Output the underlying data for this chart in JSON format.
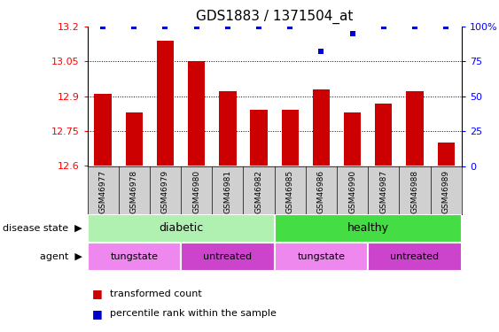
{
  "title": "GDS1883 / 1371504_at",
  "samples": [
    "GSM46977",
    "GSM46978",
    "GSM46979",
    "GSM46980",
    "GSM46981",
    "GSM46982",
    "GSM46985",
    "GSM46986",
    "GSM46990",
    "GSM46987",
    "GSM46988",
    "GSM46989"
  ],
  "bar_values": [
    12.91,
    12.83,
    13.14,
    13.05,
    12.92,
    12.84,
    12.84,
    12.93,
    12.83,
    12.87,
    12.92,
    12.7
  ],
  "percentile_values": [
    100,
    100,
    100,
    100,
    100,
    100,
    100,
    82,
    95,
    100,
    100,
    100
  ],
  "bar_color": "#cc0000",
  "percentile_color": "#0000cc",
  "ylim_left": [
    12.6,
    13.2
  ],
  "ylim_right": [
    0,
    100
  ],
  "yticks_left": [
    12.6,
    12.75,
    12.9,
    13.05,
    13.2
  ],
  "yticks_right": [
    0,
    25,
    50,
    75,
    100
  ],
  "ytick_labels_left": [
    "12.6",
    "12.75",
    "12.9",
    "13.05",
    "13.2"
  ],
  "ytick_labels_right": [
    "0",
    "25",
    "50",
    "75",
    "100%"
  ],
  "disease_state_color_diabetic": "#b0f0b0",
  "disease_state_color_healthy": "#44dd44",
  "agent_color_tungstate": "#ee88ee",
  "agent_color_untreated": "#cc44cc",
  "xtick_bg": "#d0d0d0",
  "background_color": "#ffffff"
}
